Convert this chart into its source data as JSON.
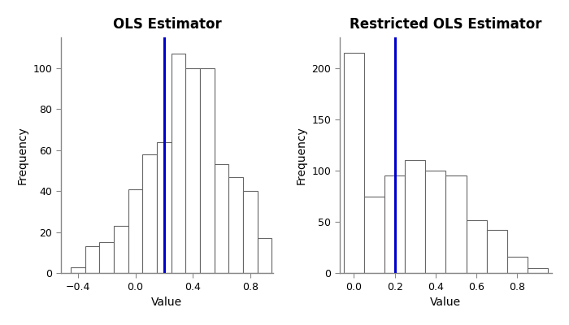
{
  "plot1": {
    "title": "OLS Estimator",
    "xlabel": "Value",
    "ylabel": "Frequency",
    "vline": 0.2,
    "bar_left_edges": [
      -0.45,
      -0.35,
      -0.25,
      -0.15,
      -0.05,
      0.05,
      0.15,
      0.25,
      0.35,
      0.45,
      0.55,
      0.65,
      0.75,
      0.85
    ],
    "bar_heights": [
      3,
      13,
      15,
      23,
      41,
      58,
      64,
      107,
      100,
      100,
      53,
      47,
      40,
      17
    ],
    "xlim": [
      -0.52,
      0.96
    ],
    "ylim": [
      0,
      115
    ],
    "yticks": [
      0,
      20,
      40,
      60,
      80,
      100
    ],
    "xticks": [
      -0.4,
      0.0,
      0.4,
      0.8
    ]
  },
  "plot2": {
    "title": "Restricted OLS Estimator",
    "xlabel": "Value",
    "ylabel": "Frequency",
    "vline": 0.2,
    "bar_left_edges": [
      -0.05,
      0.05,
      0.15,
      0.25,
      0.35,
      0.45,
      0.55,
      0.65,
      0.75,
      0.85
    ],
    "bar_heights": [
      215,
      75,
      95,
      110,
      100,
      95,
      52,
      42,
      16,
      5
    ],
    "xlim": [
      -0.07,
      0.97
    ],
    "ylim": [
      0,
      230
    ],
    "yticks": [
      0,
      50,
      100,
      150,
      200
    ],
    "xticks": [
      0.0,
      0.2,
      0.4,
      0.6,
      0.8
    ]
  },
  "bin_width": 0.1,
  "bar_facecolor": "#ffffff",
  "bar_edgecolor": "#666666",
  "vline_color": "#0000cc",
  "bg_color": "#ffffff",
  "title_fontsize": 12,
  "label_fontsize": 10,
  "tick_fontsize": 9,
  "spine_color": "#888888"
}
